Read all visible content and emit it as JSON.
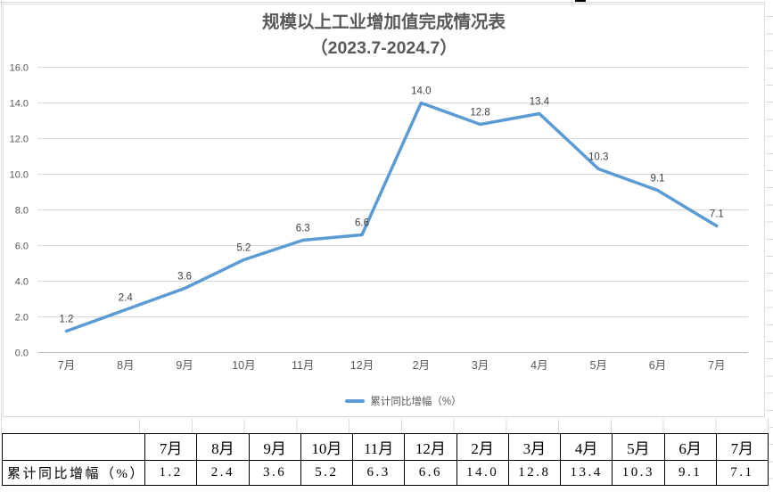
{
  "chart_data": {
    "type": "line",
    "title": "规模以上工业增加值完成情况表",
    "subtitle": "（2023.7-2024.7）",
    "categories": [
      "7月",
      "8月",
      "9月",
      "10月",
      "11月",
      "12月",
      "2月",
      "3月",
      "4月",
      "5月",
      "6月",
      "7月"
    ],
    "series": [
      {
        "name": "累计同比增幅（%）",
        "values": [
          1.2,
          2.4,
          3.6,
          5.2,
          6.3,
          6.6,
          14.0,
          12.8,
          13.4,
          10.3,
          9.1,
          7.1
        ]
      }
    ],
    "xlabel": "",
    "ylabel": "",
    "ylim": [
      0,
      16
    ],
    "ytick_step": 2,
    "grid": true,
    "legend_position": "bottom",
    "line_color": "#5B9BD5",
    "gridline_color": "#d9d9d9",
    "axisline_color": "#bfbfbf",
    "data_labels": true
  },
  "table": {
    "row_label": "累计同比增幅（%）",
    "columns": [
      "7月",
      "8月",
      "9月",
      "10月",
      "11月",
      "12月",
      "2月",
      "3月",
      "4月",
      "5月",
      "6月",
      "7月"
    ],
    "values": [
      "1.2",
      "2.4",
      "3.6",
      "5.2",
      "6.3",
      "6.6",
      "14.0",
      "12.8",
      "13.4",
      "10.3",
      "9.1",
      "7.1"
    ]
  }
}
